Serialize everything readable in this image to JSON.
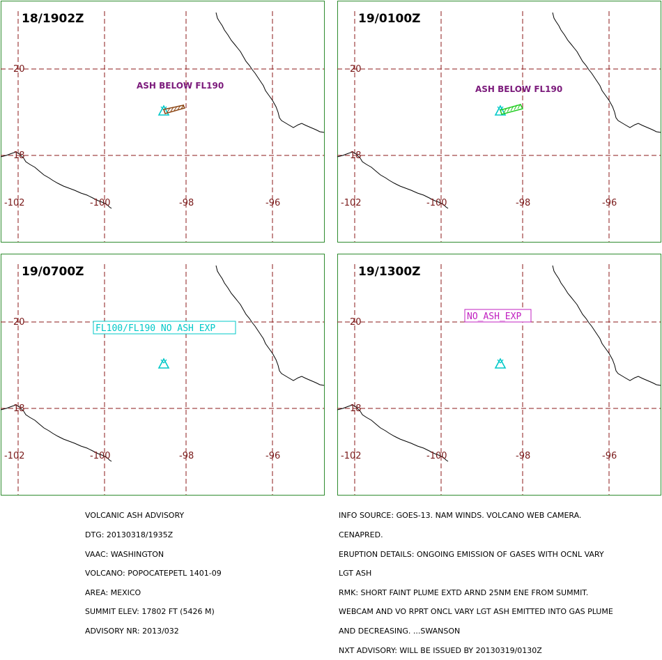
{
  "colors": {
    "border": "#2e8b2e",
    "grid": "#8b1a1a",
    "coast": "#000000",
    "volcano": "#00c8c8",
    "ash_text": "#7b1a7b",
    "plume_p1": "#8b4513",
    "plume_p2": "#22cc22",
    "cyan_box": "#00c8c8",
    "magenta_box": "#c020c0"
  },
  "axis_labels": {
    "lat": [
      "20",
      "18"
    ],
    "lon": [
      "-102",
      "-100",
      "-98",
      "-96"
    ]
  },
  "icons": {
    "volcano": "volcano-triangle-icon"
  },
  "panels": [
    {
      "title": "18/1902Z",
      "label": "ASH BELOW FL190",
      "plume": true,
      "plume_color": "#8b4513",
      "box": false
    },
    {
      "title": "19/0100Z",
      "label": "ASH BELOW FL190",
      "plume": true,
      "plume_color": "#22cc22",
      "box": false
    },
    {
      "title": "19/0700Z",
      "label": "FL100/FL190 NO ASH EXP",
      "plume": false,
      "box": true,
      "box_color": "#00c8c8"
    },
    {
      "title": "19/1300Z",
      "label": "NO ASH EXP",
      "plume": false,
      "box": true,
      "box_color": "#c020c0"
    }
  ],
  "advisory_left": [
    "VOLCANIC ASH ADVISORY",
    "DTG: 20130318/1935Z",
    "VAAC: WASHINGTON",
    "VOLCANO: POPOCATEPETL 1401-09",
    "AREA: MEXICO",
    "SUMMIT ELEV: 17802 FT (5426 M)",
    "ADVISORY NR: 2013/032"
  ],
  "advisory_right": [
    "INFO SOURCE: GOES-13. NAM WINDS. VOLCANO WEB CAMERA.",
    "CENAPRED.",
    "ERUPTION DETAILS: ONGOING EMISSION OF GASES WITH OCNL VARY",
    "LGT ASH",
    "RMK: SHORT FAINT PLUME EXTD ARND 25NM ENE FROM SUMMIT.",
    "WEBCAM AND VO RPRT ONCL VARY LGT ASH EMITTED INTO GAS PLUME",
    "AND DECREASING. ...SWANSON",
    "NXT ADVISORY: WILL BE ISSUED BY 20130319/0130Z"
  ]
}
